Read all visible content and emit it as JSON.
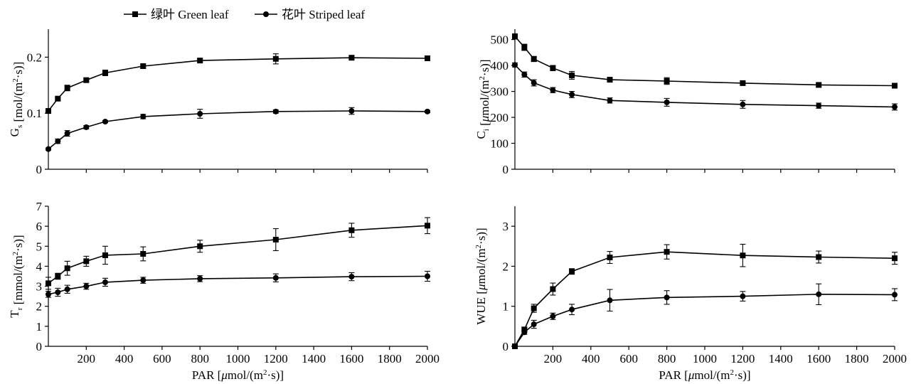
{
  "legend": {
    "entries": [
      {
        "marker": "square",
        "label": "绿叶 Green leaf"
      },
      {
        "marker": "circle",
        "label": "花叶 Striped leaf"
      }
    ]
  },
  "chart_data": [
    {
      "type": "line",
      "panel": "Gs",
      "ylabel_main": "G",
      "ylabel_sub": "s",
      "ylabel_unit": " [mol/(m",
      "ylabel_sup": "2",
      "ylabel_unit_end": "·s)]",
      "ylim": [
        0,
        0.25
      ],
      "yticks": [
        0,
        0.1,
        0.2
      ],
      "yticklabels": [
        "0",
        "0.1",
        "0.2"
      ],
      "xlim": [
        0,
        2000
      ],
      "xticks": [
        200,
        400,
        600,
        800,
        1000,
        1200,
        1400,
        1600,
        1800,
        2000
      ],
      "show_xticklabels": false,
      "x": [
        0,
        50,
        100,
        200,
        300,
        500,
        800,
        1200,
        1600,
        2000
      ],
      "series": [
        {
          "name": "绿叶 Green leaf",
          "marker": "square",
          "values": [
            0.104,
            0.126,
            0.145,
            0.159,
            0.172,
            0.184,
            0.194,
            0.197,
            0.199,
            0.198
          ],
          "err": [
            0.003,
            0.003,
            0.005,
            0.003,
            0.005,
            0.004,
            0.003,
            0.009,
            0.003,
            0.002
          ]
        },
        {
          "name": "花叶 Striped leaf",
          "marker": "circle",
          "values": [
            0.036,
            0.05,
            0.064,
            0.075,
            0.085,
            0.094,
            0.099,
            0.103,
            0.104,
            0.103
          ],
          "err": [
            0.002,
            0.004,
            0.005,
            0.003,
            0.002,
            0.004,
            0.008,
            0.003,
            0.006,
            0.002
          ]
        }
      ]
    },
    {
      "type": "line",
      "panel": "Ci",
      "ylabel_main": "C",
      "ylabel_sub": "i",
      "ylabel_unit": " [μmol/(m",
      "ylabel_sup": "2",
      "ylabel_unit_end": "·s)]",
      "ylim": [
        0,
        540
      ],
      "yticks": [
        0,
        100,
        200,
        300,
        400,
        500
      ],
      "yticklabels": [
        "0",
        "100",
        "200",
        "300",
        "400",
        "500"
      ],
      "xlim": [
        0,
        2000
      ],
      "xticks": [
        200,
        400,
        600,
        800,
        1000,
        1200,
        1400,
        1600,
        1800,
        2000
      ],
      "show_xticklabels": false,
      "x": [
        0,
        50,
        100,
        200,
        300,
        500,
        800,
        1200,
        1600,
        2000
      ],
      "series": [
        {
          "name": "绿叶 Green leaf",
          "marker": "square",
          "values": [
            512,
            470,
            425,
            390,
            362,
            345,
            340,
            332,
            325,
            322
          ],
          "err": [
            10,
            12,
            10,
            10,
            15,
            9,
            13,
            8,
            8,
            6
          ]
        },
        {
          "name": "花叶 Striped leaf",
          "marker": "circle",
          "values": [
            402,
            365,
            333,
            305,
            288,
            265,
            258,
            250,
            245,
            240
          ],
          "err": [
            8,
            10,
            12,
            10,
            12,
            10,
            15,
            15,
            10,
            12
          ]
        }
      ]
    },
    {
      "type": "line",
      "panel": "Tr",
      "ylabel_main": "T",
      "ylabel_sub": "r",
      "ylabel_unit": " [mmol/(m",
      "ylabel_sup": "2",
      "ylabel_unit_end": "·s)]",
      "ylim": [
        0,
        7
      ],
      "yticks": [
        0,
        1,
        2,
        3,
        4,
        5,
        6,
        7
      ],
      "yticklabels": [
        "0",
        "1",
        "2",
        "3",
        "4",
        "5",
        "6",
        "7"
      ],
      "xlim": [
        0,
        2000
      ],
      "xticks": [
        200,
        400,
        600,
        800,
        1000,
        1200,
        1400,
        1600,
        1800,
        2000
      ],
      "xticklabels": [
        "200",
        "400",
        "600",
        "800",
        "1000",
        "1200",
        "1400",
        "1600",
        "1800",
        "2000"
      ],
      "show_xticklabels": true,
      "xlabel_pre": "PAR [",
      "xlabel_mu": "μ",
      "xlabel_unit": "mol/(m",
      "xlabel_sup": "2",
      "xlabel_end": "·s)]",
      "x": [
        0,
        50,
        100,
        200,
        300,
        500,
        800,
        1200,
        1600,
        2000
      ],
      "series": [
        {
          "name": "绿叶 Green leaf",
          "marker": "square",
          "values": [
            3.15,
            3.5,
            3.9,
            4.25,
            4.55,
            4.62,
            5.0,
            5.33,
            5.8,
            6.03
          ],
          "err": [
            0.3,
            0.15,
            0.35,
            0.25,
            0.45,
            0.35,
            0.3,
            0.55,
            0.35,
            0.4
          ]
        },
        {
          "name": "花叶 Striped leaf",
          "marker": "circle",
          "values": [
            2.6,
            2.7,
            2.85,
            3.0,
            3.2,
            3.3,
            3.38,
            3.42,
            3.48,
            3.5
          ],
          "err": [
            0.15,
            0.2,
            0.2,
            0.15,
            0.2,
            0.15,
            0.15,
            0.2,
            0.2,
            0.25
          ]
        }
      ]
    },
    {
      "type": "line",
      "panel": "WUE",
      "ylabel_main": "WUE",
      "ylabel_sub": "",
      "ylabel_unit": " [μmol/(m",
      "ylabel_sup": "2",
      "ylabel_unit_end": "·s)]",
      "ylim": [
        0,
        3.5
      ],
      "yticks": [
        0,
        1,
        2,
        3
      ],
      "yticklabels": [
        "0",
        "1",
        "2",
        "3"
      ],
      "xlim": [
        0,
        2000
      ],
      "xticks": [
        200,
        400,
        600,
        800,
        1000,
        1200,
        1400,
        1600,
        1800,
        2000
      ],
      "xticklabels": [
        "200",
        "400",
        "600",
        "800",
        "1000",
        "1200",
        "1400",
        "1600",
        "1800",
        "2000"
      ],
      "show_xticklabels": true,
      "xlabel_pre": "PAR [",
      "xlabel_mu": "μ",
      "xlabel_unit": "mol/(m",
      "xlabel_sup": "2",
      "xlabel_end": "·s)]",
      "x": [
        0,
        50,
        100,
        200,
        300,
        500,
        800,
        1200,
        1600,
        2000
      ],
      "series": [
        {
          "name": "绿叶 Green leaf",
          "marker": "square",
          "values": [
            0.0,
            0.42,
            0.95,
            1.43,
            1.87,
            2.22,
            2.36,
            2.27,
            2.23,
            2.2
          ],
          "err": [
            0.02,
            0.06,
            0.1,
            0.15,
            0.07,
            0.15,
            0.18,
            0.28,
            0.15,
            0.15
          ]
        },
        {
          "name": "花叶 Striped leaf",
          "marker": "circle",
          "values": [
            0.0,
            0.35,
            0.55,
            0.75,
            0.92,
            1.15,
            1.22,
            1.25,
            1.3,
            1.29
          ],
          "err": [
            0.02,
            0.05,
            0.1,
            0.08,
            0.13,
            0.27,
            0.17,
            0.12,
            0.26,
            0.15
          ]
        }
      ]
    }
  ]
}
